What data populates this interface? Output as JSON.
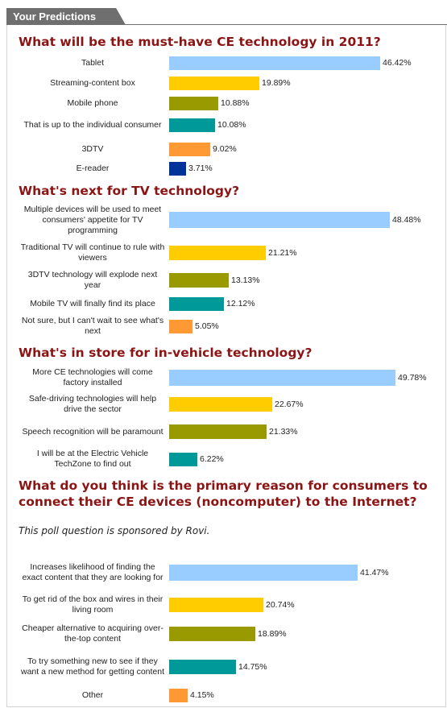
{
  "header": {
    "title": "Your Predictions"
  },
  "chart_data": [
    {
      "type": "bar",
      "title": "What will be the must-have CE technology in 2011?",
      "categories": [
        "Tablet",
        "Streaming-content box",
        "Mobile phone",
        "That is up to the individual consumer",
        "3DTV",
        "E-reader"
      ],
      "values": [
        46.42,
        19.89,
        10.88,
        10.08,
        9.02,
        3.71
      ],
      "value_labels": [
        "46.42%",
        "19.89%",
        "10.88%",
        "10.08%",
        "9.02%",
        "3.71%"
      ],
      "colors": [
        "#99ccff",
        "#ffcc00",
        "#999900",
        "#009999",
        "#ff9933",
        "#003399"
      ]
    },
    {
      "type": "bar",
      "title": "What's next for TV technology?",
      "categories": [
        "Multiple devices will be used to meet consumers' appetite for TV programming",
        "Traditional TV will continue to rule with viewers",
        "3DTV technology will explode next year",
        "Mobile TV will finally find its place",
        "Not sure, but I can't wait to see what's next"
      ],
      "values": [
        48.48,
        21.21,
        13.13,
        12.12,
        5.05
      ],
      "value_labels": [
        "48.48%",
        "21.21%",
        "13.13%",
        "12.12%",
        "5.05%"
      ],
      "colors": [
        "#99ccff",
        "#ffcc00",
        "#999900",
        "#009999",
        "#ff9933"
      ]
    },
    {
      "type": "bar",
      "title": "What's in store for in-vehicle technology?",
      "categories": [
        "More CE technologies will come factory installed",
        "Safe-driving technologies will help drive the sector",
        "Speech recognition will be paramount",
        "I will be at the Electric Vehicle TechZone to find out"
      ],
      "values": [
        49.78,
        22.67,
        21.33,
        6.22
      ],
      "value_labels": [
        "49.78%",
        "22.67%",
        "21.33%",
        "6.22%"
      ],
      "colors": [
        "#99ccff",
        "#ffcc00",
        "#999900",
        "#009999"
      ]
    },
    {
      "type": "bar",
      "title": "What do you think is the primary reason for consumers to connect their CE devices (noncomputer) to the Internet?",
      "title_lines": [
        "What do you think is the primary reason for consumers to",
        "connect their CE devices (noncomputer) to the Internet?"
      ],
      "note": "This poll question is sponsored by Rovi.",
      "categories": [
        "Increases likelihood of finding the exact content that they are looking for",
        "To get rid of the box and wires in their living room",
        "Cheaper alternative to acquiring over-the-top content",
        "To try something new to see if they want a new method for getting content",
        "Other"
      ],
      "values": [
        41.47,
        20.74,
        18.89,
        14.75,
        4.15
      ],
      "value_labels": [
        "41.47%",
        "20.74%",
        "18.89%",
        "14.75%",
        "4.15%"
      ],
      "colors": [
        "#99ccff",
        "#ffcc00",
        "#999900",
        "#009999",
        "#ff9933"
      ]
    }
  ]
}
